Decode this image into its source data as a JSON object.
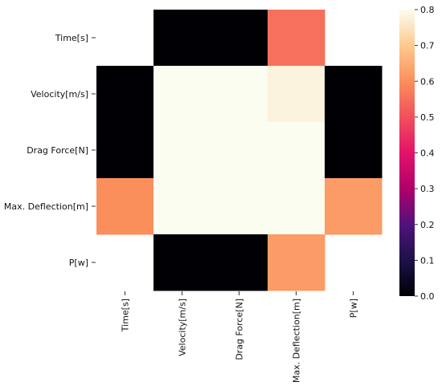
{
  "chart_data": {
    "type": "heatmap",
    "row_labels": [
      "Time[s]",
      "Velocity[m/s]",
      "Drag Force[N]",
      "Max. Deflection[m]",
      "P[w]"
    ],
    "col_labels": [
      "Time[s]",
      "Velocity[m/s]",
      "Drag Force[N]",
      "Max. Deflection[m]",
      "P[w]"
    ],
    "values": [
      [
        null,
        0.0,
        0.0,
        0.55,
        null
      ],
      [
        0.0,
        0.8,
        0.8,
        0.78,
        0.0
      ],
      [
        0.0,
        0.8,
        0.8,
        0.8,
        0.0
      ],
      [
        0.6,
        0.8,
        0.8,
        0.8,
        0.62
      ],
      [
        null,
        0.0,
        0.0,
        0.62,
        null
      ]
    ],
    "colormap": "magma",
    "vmin": 0.0,
    "vmax": 0.8,
    "colorbar_ticks": [
      "0.0",
      "0.1",
      "0.2",
      "0.3",
      "0.4",
      "0.5",
      "0.6",
      "0.7",
      "0.8"
    ],
    "title": "",
    "xlabel": "",
    "ylabel": ""
  }
}
